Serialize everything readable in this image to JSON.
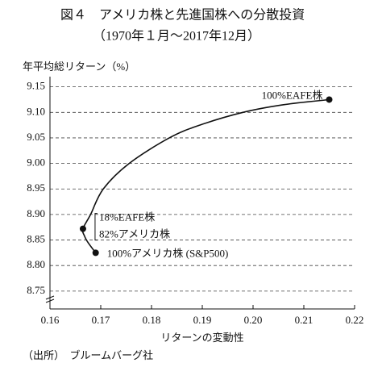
{
  "chart_data": {
    "type": "line",
    "title": "図４　アメリカ株と先進国株への分散投資",
    "subtitle": "（1970年１月～2017年12月）",
    "y_label": "年平均総リターン（%）",
    "x_label": "リターンの変動性",
    "source": "（出所）　ブルームバーグ社",
    "series": [
      {
        "color": "#111111",
        "x": [
          0.169,
          0.1675,
          0.1668,
          0.1665,
          0.168,
          0.1705,
          0.1756,
          0.1835,
          0.1895,
          0.198,
          0.206,
          0.215
        ],
        "values": [
          8.825,
          8.845,
          8.858,
          8.872,
          8.9,
          8.95,
          9.0,
          9.05,
          9.075,
          9.1,
          9.115,
          9.125
        ]
      }
    ],
    "points": [
      {
        "x": 0.215,
        "y": 9.125,
        "labels": [
          "100%EAFE株"
        ]
      },
      {
        "x": 0.1665,
        "y": 8.872,
        "labels": [
          "18%EAFE株",
          "82%アメリカ株"
        ]
      },
      {
        "x": 0.169,
        "y": 8.825,
        "labels": [
          "100%アメリカ株 (S&P500)"
        ]
      }
    ],
    "xlim": [
      0.16,
      0.22
    ],
    "xticks": [
      0.16,
      0.17,
      0.18,
      0.19,
      {
        "value": 0.2,
        "label": "0.20"
      },
      0.21,
      0.22
    ],
    "ylim": [
      8.715,
      9.17
    ],
    "yticks": [
      8.75,
      {
        "value": 8.8,
        "label": "8.80"
      },
      8.85,
      {
        "value": 8.9,
        "label": "8.90"
      },
      8.95,
      {
        "value": 9,
        "label": "9.00"
      },
      9.05,
      {
        "value": 9.1,
        "label": "9.10"
      },
      9.15
    ],
    "grid": true
  }
}
